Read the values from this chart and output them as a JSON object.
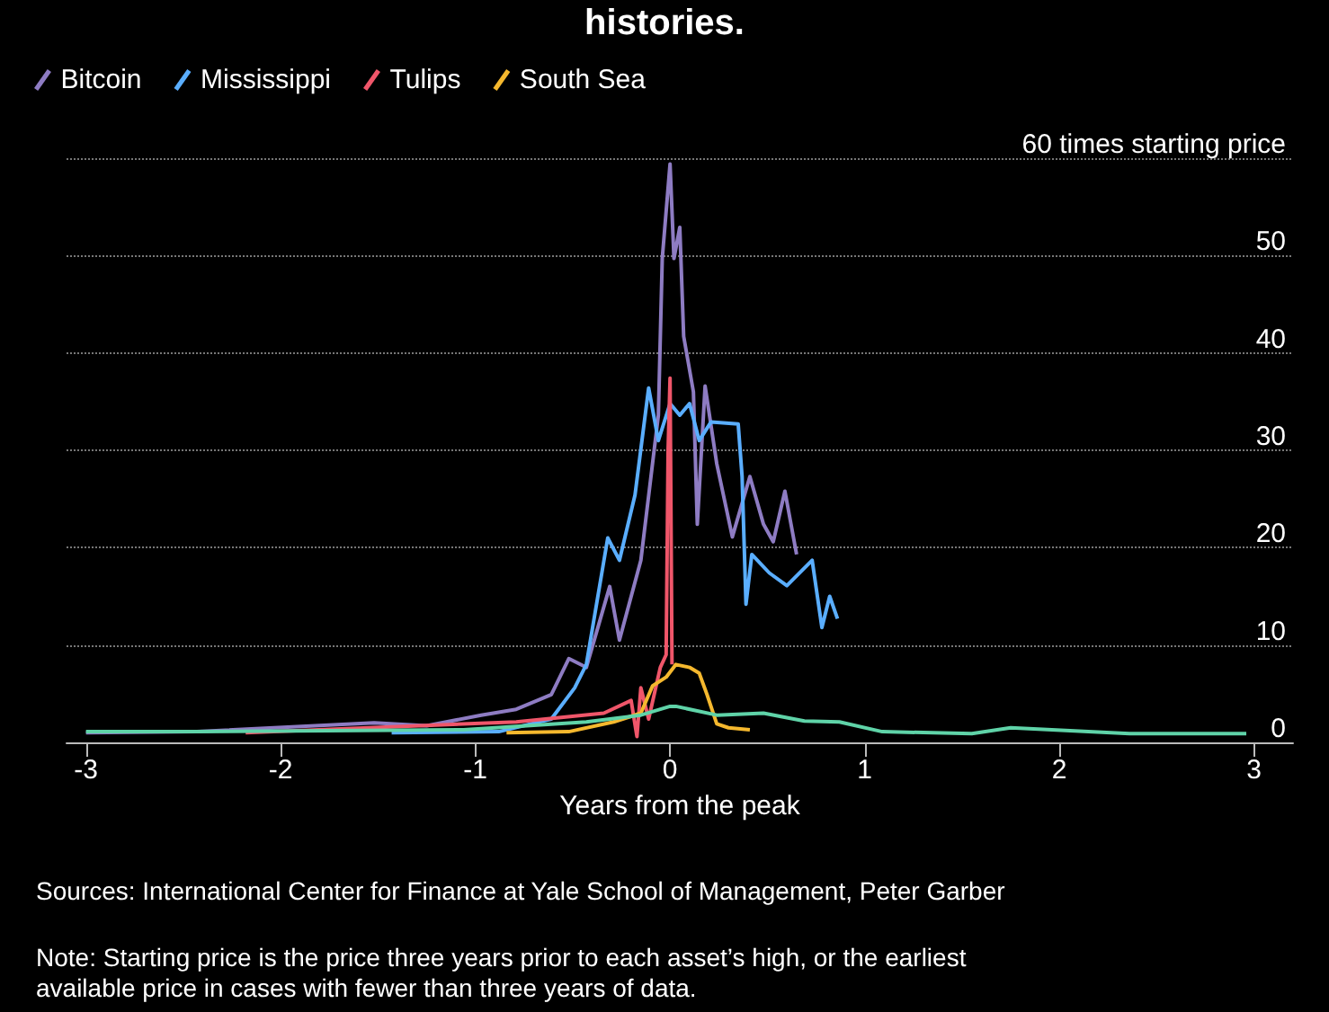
{
  "chart_data": {
    "type": "line",
    "title": "histories.",
    "xlabel": "Years from the peak",
    "xlim": [
      -3.1,
      3.2
    ],
    "xticks": [
      -3,
      -2,
      -1,
      0,
      1,
      2,
      3
    ],
    "ylim": [
      0,
      60
    ],
    "yticks": [
      0,
      10,
      20,
      30,
      40,
      50,
      {
        "value": 60,
        "label": "60 times starting price"
      }
    ],
    "grid": "y",
    "legend": "top left",
    "marker": "none",
    "line_style": "solid",
    "annotations": [
      "Sources: International Center for Finance at Yale School of Management, Peter Garber",
      "Note: Starting price is the price three years prior to each asset’s high, or the earliest available price in cases with fewer than three years of data."
    ],
    "series": [
      {
        "name": "Bitcoin",
        "color": "#8e7cc3",
        "x": [
          -3,
          -2.43,
          -1.52,
          -1.25,
          -0.97,
          -0.79,
          -0.61,
          -0.52,
          -0.43,
          -0.31,
          -0.26,
          -0.15,
          -0.06,
          -0.04,
          0,
          0.02,
          0.05,
          0.07,
          0.12,
          0.14,
          0.18,
          0.24,
          0.32,
          0.41,
          0.48,
          0.53,
          0.59,
          0.65
        ],
        "values": [
          1,
          1.1,
          2,
          1.7,
          2.8,
          3.4,
          4.9,
          8.6,
          7.7,
          16,
          10.5,
          18.7,
          33.6,
          49.7,
          59.4,
          49.7,
          52.9,
          41.7,
          36,
          22.4,
          36.6,
          28.6,
          21.1,
          27.3,
          22.4,
          20.6,
          25.8,
          19.3
        ]
      },
      {
        "name": "Mississippi",
        "color": "#5aaeff",
        "x": [
          -1.43,
          -0.88,
          -0.61,
          -0.49,
          -0.43,
          -0.32,
          -0.26,
          -0.18,
          -0.11,
          -0.06,
          0,
          0.05,
          0.1,
          0.15,
          0.21,
          0.35,
          0.37,
          0.39,
          0.42,
          0.51,
          0.6,
          0.73,
          0.78,
          0.82,
          0.86
        ],
        "values": [
          1,
          1.1,
          2.4,
          5.6,
          8,
          21,
          18.7,
          25.4,
          36.4,
          31,
          34.8,
          33.6,
          34.8,
          31,
          32.9,
          32.7,
          27.3,
          14.2,
          19.3,
          17.4,
          16.1,
          18.7,
          11.8,
          15,
          12.7
        ]
      },
      {
        "name": "Tulips",
        "color": "#f0566a",
        "x": [
          -2.18,
          -0.79,
          -0.34,
          -0.2,
          -0.17,
          -0.15,
          -0.11,
          -0.05,
          -0.02,
          -0.01,
          0,
          0.01
        ],
        "values": [
          1,
          2.1,
          3,
          4.3,
          0.6,
          5.6,
          2.4,
          7.7,
          9,
          30,
          37.4,
          8
        ]
      },
      {
        "name": "South Sea",
        "color": "#f5b82e",
        "x": [
          -0.84,
          -0.52,
          -0.29,
          -0.15,
          -0.09,
          -0.02,
          0.03,
          0.1,
          0.15,
          0.19,
          0.24,
          0.3,
          0.41
        ],
        "values": [
          1,
          1.1,
          2.1,
          3,
          5.8,
          6.7,
          8,
          7.7,
          7.1,
          4.9,
          1.9,
          1.5,
          1.3
        ]
      },
      {
        "color": "#5fd3a8",
        "x": [
          -3,
          -2.43,
          -1.06,
          -0.43,
          -0.15,
          0,
          0.03,
          0.24,
          0.48,
          0.69,
          0.87,
          1.09,
          1.55,
          1.75,
          2.36,
          2.96
        ],
        "values": [
          1.1,
          1.1,
          1.3,
          2.1,
          2.8,
          3.7,
          3.7,
          2.8,
          3,
          2.2,
          2.1,
          1.1,
          0.9,
          1.5,
          0.9,
          0.9
        ]
      }
    ]
  }
}
